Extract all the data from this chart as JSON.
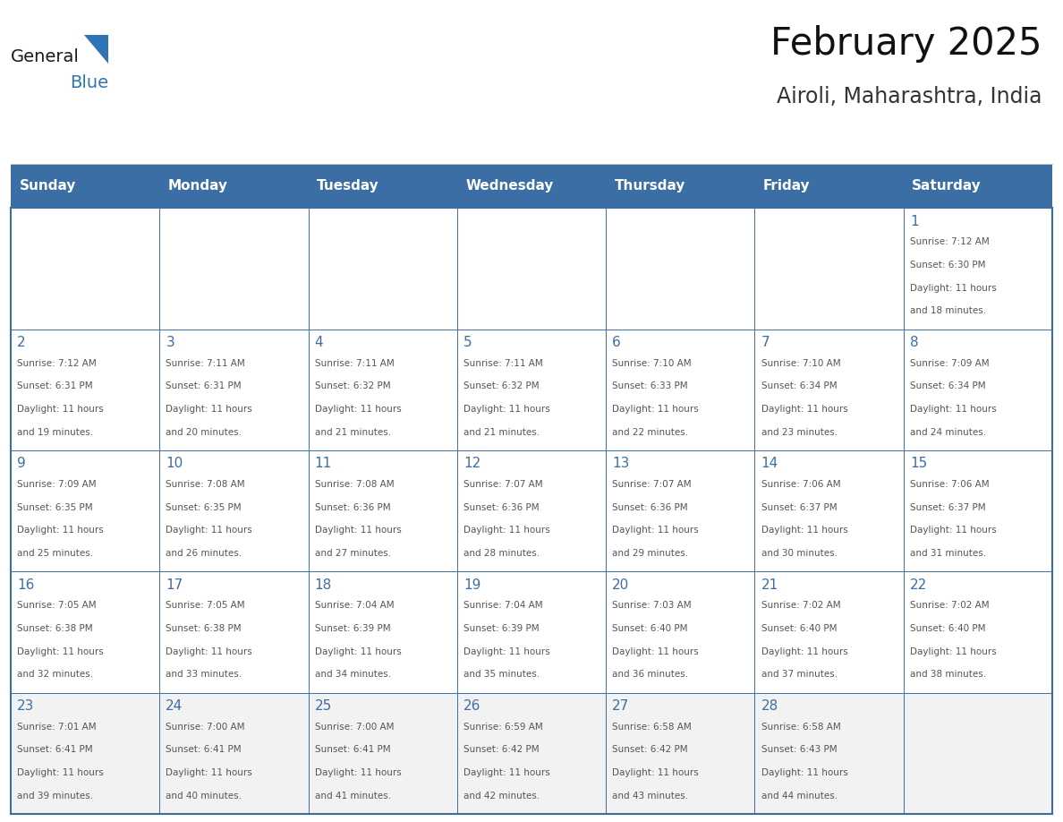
{
  "title": "February 2025",
  "subtitle": "Airoli, Maharashtra, India",
  "header_bg": "#3A6EA5",
  "header_text_color": "#FFFFFF",
  "cell_bg": "#FFFFFF",
  "last_row_bg": "#F2F2F2",
  "border_color": "#3A6EA5",
  "day_number_color": "#3A6EA5",
  "info_text_color": "#555555",
  "grid_line_color": "#3A6EA5",
  "days_of_week": [
    "Sunday",
    "Monday",
    "Tuesday",
    "Wednesday",
    "Thursday",
    "Friday",
    "Saturday"
  ],
  "calendar_data": [
    [
      null,
      null,
      null,
      null,
      null,
      null,
      {
        "day": 1,
        "sunrise": "7:12 AM",
        "sunset": "6:30 PM",
        "daylight_line1": "Daylight: 11 hours",
        "daylight_line2": "and 18 minutes."
      }
    ],
    [
      {
        "day": 2,
        "sunrise": "7:12 AM",
        "sunset": "6:31 PM",
        "daylight_line1": "Daylight: 11 hours",
        "daylight_line2": "and 19 minutes."
      },
      {
        "day": 3,
        "sunrise": "7:11 AM",
        "sunset": "6:31 PM",
        "daylight_line1": "Daylight: 11 hours",
        "daylight_line2": "and 20 minutes."
      },
      {
        "day": 4,
        "sunrise": "7:11 AM",
        "sunset": "6:32 PM",
        "daylight_line1": "Daylight: 11 hours",
        "daylight_line2": "and 21 minutes."
      },
      {
        "day": 5,
        "sunrise": "7:11 AM",
        "sunset": "6:32 PM",
        "daylight_line1": "Daylight: 11 hours",
        "daylight_line2": "and 21 minutes."
      },
      {
        "day": 6,
        "sunrise": "7:10 AM",
        "sunset": "6:33 PM",
        "daylight_line1": "Daylight: 11 hours",
        "daylight_line2": "and 22 minutes."
      },
      {
        "day": 7,
        "sunrise": "7:10 AM",
        "sunset": "6:34 PM",
        "daylight_line1": "Daylight: 11 hours",
        "daylight_line2": "and 23 minutes."
      },
      {
        "day": 8,
        "sunrise": "7:09 AM",
        "sunset": "6:34 PM",
        "daylight_line1": "Daylight: 11 hours",
        "daylight_line2": "and 24 minutes."
      }
    ],
    [
      {
        "day": 9,
        "sunrise": "7:09 AM",
        "sunset": "6:35 PM",
        "daylight_line1": "Daylight: 11 hours",
        "daylight_line2": "and 25 minutes."
      },
      {
        "day": 10,
        "sunrise": "7:08 AM",
        "sunset": "6:35 PM",
        "daylight_line1": "Daylight: 11 hours",
        "daylight_line2": "and 26 minutes."
      },
      {
        "day": 11,
        "sunrise": "7:08 AM",
        "sunset": "6:36 PM",
        "daylight_line1": "Daylight: 11 hours",
        "daylight_line2": "and 27 minutes."
      },
      {
        "day": 12,
        "sunrise": "7:07 AM",
        "sunset": "6:36 PM",
        "daylight_line1": "Daylight: 11 hours",
        "daylight_line2": "and 28 minutes."
      },
      {
        "day": 13,
        "sunrise": "7:07 AM",
        "sunset": "6:36 PM",
        "daylight_line1": "Daylight: 11 hours",
        "daylight_line2": "and 29 minutes."
      },
      {
        "day": 14,
        "sunrise": "7:06 AM",
        "sunset": "6:37 PM",
        "daylight_line1": "Daylight: 11 hours",
        "daylight_line2": "and 30 minutes."
      },
      {
        "day": 15,
        "sunrise": "7:06 AM",
        "sunset": "6:37 PM",
        "daylight_line1": "Daylight: 11 hours",
        "daylight_line2": "and 31 minutes."
      }
    ],
    [
      {
        "day": 16,
        "sunrise": "7:05 AM",
        "sunset": "6:38 PM",
        "daylight_line1": "Daylight: 11 hours",
        "daylight_line2": "and 32 minutes."
      },
      {
        "day": 17,
        "sunrise": "7:05 AM",
        "sunset": "6:38 PM",
        "daylight_line1": "Daylight: 11 hours",
        "daylight_line2": "and 33 minutes."
      },
      {
        "day": 18,
        "sunrise": "7:04 AM",
        "sunset": "6:39 PM",
        "daylight_line1": "Daylight: 11 hours",
        "daylight_line2": "and 34 minutes."
      },
      {
        "day": 19,
        "sunrise": "7:04 AM",
        "sunset": "6:39 PM",
        "daylight_line1": "Daylight: 11 hours",
        "daylight_line2": "and 35 minutes."
      },
      {
        "day": 20,
        "sunrise": "7:03 AM",
        "sunset": "6:40 PM",
        "daylight_line1": "Daylight: 11 hours",
        "daylight_line2": "and 36 minutes."
      },
      {
        "day": 21,
        "sunrise": "7:02 AM",
        "sunset": "6:40 PM",
        "daylight_line1": "Daylight: 11 hours",
        "daylight_line2": "and 37 minutes."
      },
      {
        "day": 22,
        "sunrise": "7:02 AM",
        "sunset": "6:40 PM",
        "daylight_line1": "Daylight: 11 hours",
        "daylight_line2": "and 38 minutes."
      }
    ],
    [
      {
        "day": 23,
        "sunrise": "7:01 AM",
        "sunset": "6:41 PM",
        "daylight_line1": "Daylight: 11 hours",
        "daylight_line2": "and 39 minutes."
      },
      {
        "day": 24,
        "sunrise": "7:00 AM",
        "sunset": "6:41 PM",
        "daylight_line1": "Daylight: 11 hours",
        "daylight_line2": "and 40 minutes."
      },
      {
        "day": 25,
        "sunrise": "7:00 AM",
        "sunset": "6:41 PM",
        "daylight_line1": "Daylight: 11 hours",
        "daylight_line2": "and 41 minutes."
      },
      {
        "day": 26,
        "sunrise": "6:59 AM",
        "sunset": "6:42 PM",
        "daylight_line1": "Daylight: 11 hours",
        "daylight_line2": "and 42 minutes."
      },
      {
        "day": 27,
        "sunrise": "6:58 AM",
        "sunset": "6:42 PM",
        "daylight_line1": "Daylight: 11 hours",
        "daylight_line2": "and 43 minutes."
      },
      {
        "day": 28,
        "sunrise": "6:58 AM",
        "sunset": "6:43 PM",
        "daylight_line1": "Daylight: 11 hours",
        "daylight_line2": "and 44 minutes."
      },
      null
    ]
  ],
  "logo_general_color": "#1A1A1A",
  "logo_blue_color": "#2E75B6",
  "logo_triangle_color": "#2E75B6",
  "fig_width": 11.88,
  "fig_height": 9.18,
  "dpi": 100
}
